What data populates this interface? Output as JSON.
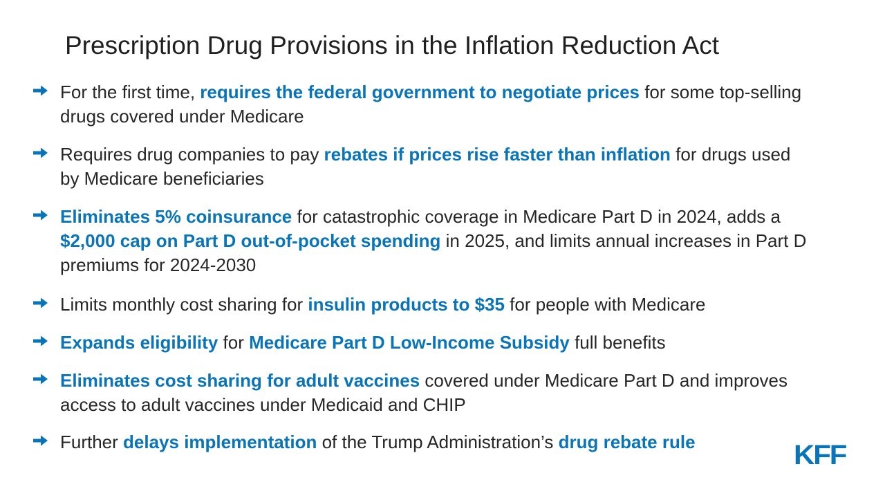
{
  "title": "Prescription Drug Provisions in the Inflation Reduction Act",
  "accent_color": "#0a74b8",
  "bullet_icon": "right-arrow-icon",
  "bullets": [
    {
      "segments": [
        {
          "text": "For the first time, ",
          "highlight": false
        },
        {
          "text": "requires the federal government to negotiate prices",
          "highlight": true
        },
        {
          "text": " for some top-selling drugs covered under Medicare",
          "highlight": false
        }
      ]
    },
    {
      "segments": [
        {
          "text": "Requires drug companies to pay ",
          "highlight": false
        },
        {
          "text": "rebates if prices rise faster than inflation",
          "highlight": true
        },
        {
          "text": " for drugs used by Medicare beneficiaries",
          "highlight": false
        }
      ]
    },
    {
      "segments": [
        {
          "text": "Eliminates 5% coinsurance",
          "highlight": true
        },
        {
          "text": " for catastrophic coverage in Medicare Part D in 2024, adds a ",
          "highlight": false
        },
        {
          "text": "$2,000 cap on Part D out-of-pocket spending",
          "highlight": true
        },
        {
          "text": " in 2025, and limits annual increases in Part D premiums for 2024-2030",
          "highlight": false
        }
      ]
    },
    {
      "segments": [
        {
          "text": "Limits monthly cost sharing for ",
          "highlight": false
        },
        {
          "text": "insulin products to $35",
          "highlight": true
        },
        {
          "text": " for people with Medicare",
          "highlight": false
        }
      ]
    },
    {
      "segments": [
        {
          "text": "Expands eligibility",
          "highlight": true
        },
        {
          "text": " for ",
          "highlight": false
        },
        {
          "text": "Medicare Part D Low-Income Subsidy",
          "highlight": true
        },
        {
          "text": " full benefits",
          "highlight": false
        }
      ]
    },
    {
      "segments": [
        {
          "text": "Eliminates cost sharing for adult vaccines",
          "highlight": true
        },
        {
          "text": " covered under Medicare Part D and improves access to adult vaccines under Medicaid and CHIP",
          "highlight": false
        }
      ]
    },
    {
      "segments": [
        {
          "text": "Further ",
          "highlight": false
        },
        {
          "text": "delays implementation",
          "highlight": true
        },
        {
          "text": " of the Trump Administration’s ",
          "highlight": false
        },
        {
          "text": "drug rebate rule",
          "highlight": true
        }
      ]
    }
  ],
  "logo": {
    "text": "KFF"
  }
}
